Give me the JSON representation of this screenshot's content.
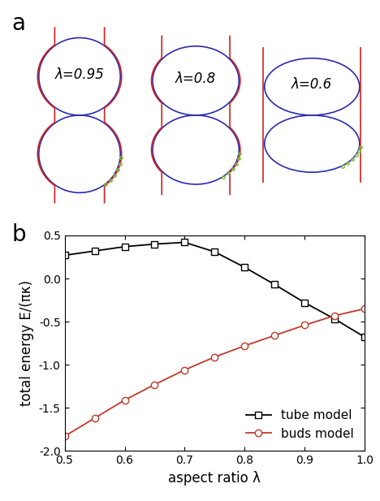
{
  "panel_a": {
    "panel_label": "a",
    "shapes": [
      {
        "label": "λ=0.95",
        "lambda": 0.95
      },
      {
        "label": "λ=0.8",
        "lambda": 0.8
      },
      {
        "label": "λ=0.6",
        "lambda": 0.6
      }
    ]
  },
  "chart_data": {
    "type": "line",
    "panel_label": "b",
    "x_label": "aspect ratio λ",
    "y_label": "total energy E/(πκ)",
    "x": [
      0.5,
      0.55,
      0.6,
      0.65,
      0.7,
      0.75,
      0.8,
      0.85,
      0.9,
      0.95,
      1.0
    ],
    "series": [
      {
        "name": "tube model",
        "color": "#000000",
        "marker": "square",
        "line_style": "solid",
        "values": [
          0.27,
          0.32,
          0.37,
          0.4,
          0.42,
          0.31,
          0.13,
          -0.07,
          -0.28,
          -0.47,
          -0.68
        ]
      },
      {
        "name": "buds model",
        "color": "#c0392b",
        "marker": "circle",
        "line_style": "solid",
        "values": [
          -1.83,
          -1.62,
          -1.41,
          -1.23,
          -1.06,
          -0.91,
          -0.78,
          -0.66,
          -0.54,
          -0.43,
          -0.35
        ]
      }
    ],
    "xlim": [
      0.5,
      1.0
    ],
    "xticks": [
      0.5,
      0.6,
      0.7,
      0.8,
      0.9,
      1.0
    ],
    "ylim": [
      -2.0,
      0.5
    ],
    "yticks": [
      -2.0,
      -1.5,
      -1.0,
      -0.5,
      0.0,
      0.5
    ],
    "legend": "lower right"
  }
}
